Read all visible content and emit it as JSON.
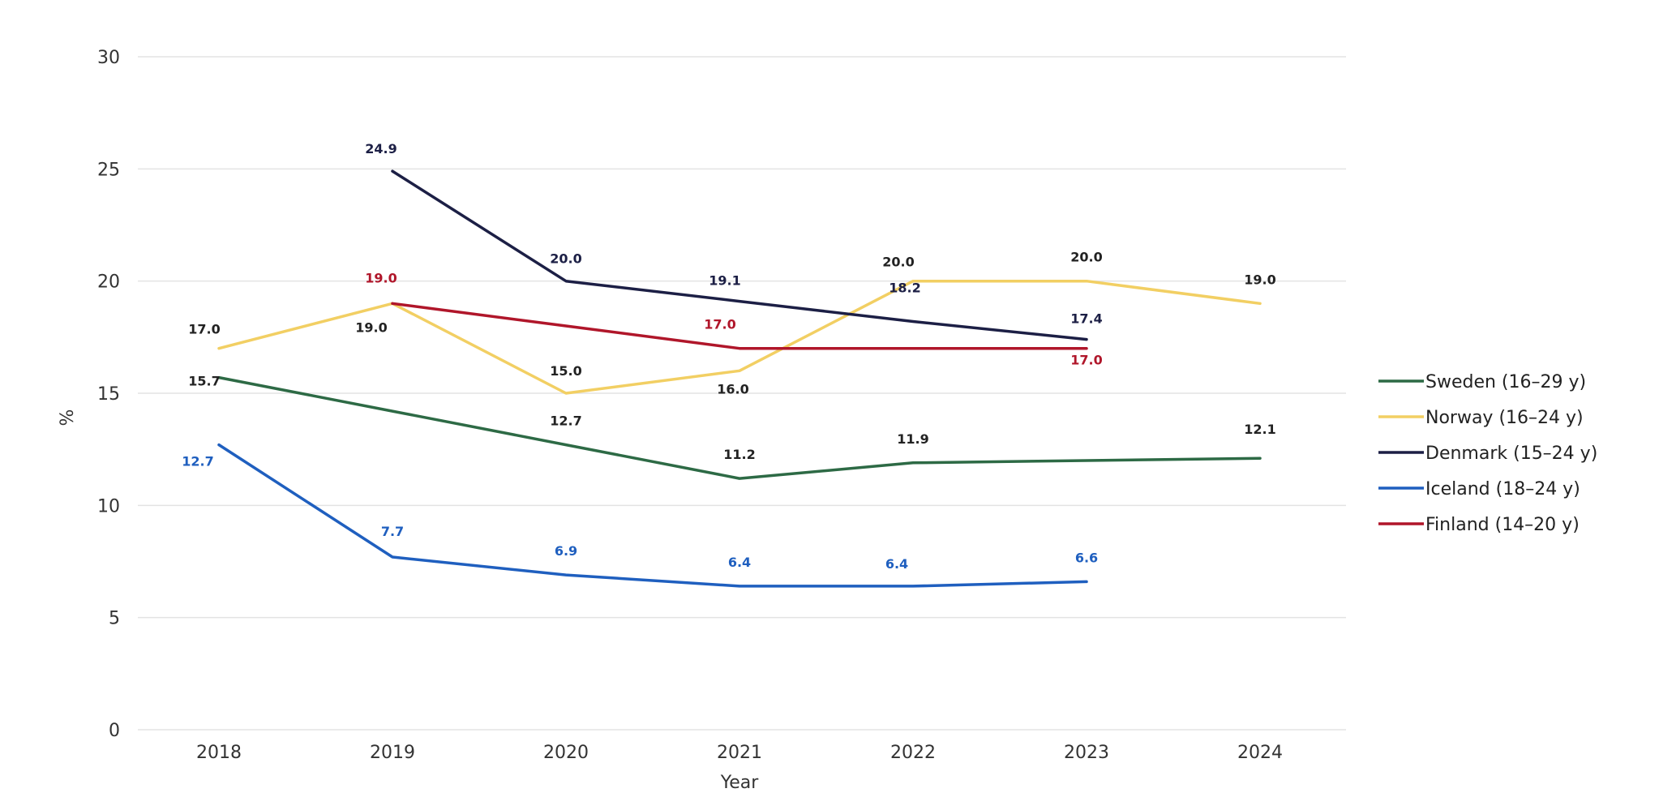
{
  "chart_data": {
    "type": "line",
    "title": "",
    "xlabel": "Year",
    "ylabel": "%",
    "categories": [
      "2018",
      "2019",
      "2020",
      "2021",
      "2022",
      "2023",
      "2024"
    ],
    "ylim": [
      0,
      30
    ],
    "yticks": [
      0,
      5,
      10,
      15,
      20,
      25,
      30
    ],
    "grid": true,
    "legend": "right",
    "series": [
      {
        "name": "Sweden (16–29 y)",
        "color": "#2d6a45",
        "values": [
          15.7,
          14.2,
          12.7,
          11.2,
          11.9,
          12.0,
          12.1
        ],
        "labels": [
          "15.7",
          "",
          "12.7",
          "11.2",
          "11.9",
          "",
          "12.1"
        ]
      },
      {
        "name": "Norway (16–24 y)",
        "color": "#f2cf63",
        "values": [
          17.0,
          19.0,
          15.0,
          16.0,
          20.0,
          20.0,
          19.0
        ],
        "labels": [
          "17.0",
          "19.0",
          "15.0",
          "16.0",
          "20.0",
          "20.0",
          "19.0"
        ]
      },
      {
        "name": "Denmark (15–24 y)",
        "color": "#1c1f45",
        "values": [
          null,
          24.9,
          20.0,
          19.1,
          18.2,
          17.4,
          null
        ],
        "labels": [
          "",
          "24.9",
          "20.0",
          "19.1",
          "18.2",
          "17.4",
          ""
        ]
      },
      {
        "name": "Iceland (18–24 y)",
        "color": "#1f5fbf",
        "values": [
          12.7,
          7.7,
          6.9,
          6.4,
          6.4,
          6.6,
          null
        ],
        "labels": [
          "12.7",
          "7.7",
          "6.9",
          "6.4",
          "6.4",
          "6.6",
          ""
        ]
      },
      {
        "name": "Finland (14–20 y)",
        "color": "#b0162a",
        "values": [
          null,
          19.0,
          18.0,
          17.0,
          17.0,
          17.0,
          null
        ],
        "labels": [
          "",
          "19.0",
          "",
          "17.0",
          "",
          "17.0",
          ""
        ]
      }
    ]
  }
}
